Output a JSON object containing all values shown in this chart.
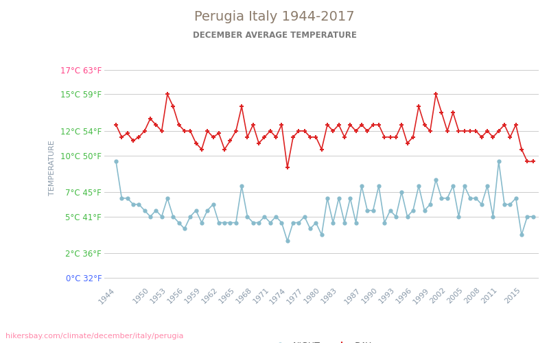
{
  "title": "Perugia Italy 1944-2017",
  "subtitle": "DECEMBER AVERAGE TEMPERATURE",
  "ylabel": "TEMPERATURE",
  "watermark": "hikersbay.com/climate/december/italy/perugia",
  "yticks_c": [
    0,
    2,
    5,
    7,
    10,
    12,
    15,
    17
  ],
  "ytick_labels": [
    "0°C 32°F",
    "2°C 36°F",
    "5°C 41°F",
    "7°C 45°F",
    "10°C 50°F",
    "12°C 54°F",
    "15°C 59°F",
    "17°C 63°F"
  ],
  "ytick_colors": [
    "#4466ff",
    "#44bb44",
    "#44bb44",
    "#44bb44",
    "#44bb44",
    "#44bb44",
    "#44bb44",
    "#ff4488"
  ],
  "xtick_labels": [
    "1944",
    "1950",
    "1953",
    "1956",
    "1959",
    "1962",
    "1965",
    "1968",
    "1971",
    "1974",
    "1977",
    "1980",
    "1983",
    "1987",
    "1990",
    "1993",
    "1996",
    "1999",
    "2002",
    "2005",
    "2008",
    "2011",
    "2015"
  ],
  "title_color": "#8B7B6B",
  "subtitle_color": "#7a7a7a",
  "ylabel_color": "#8a9aaa",
  "grid_color": "#cccccc",
  "night_color": "#88bbcc",
  "day_color": "#dd2222",
  "background_color": "#ffffff",
  "years": [
    1944,
    1945,
    1946,
    1947,
    1948,
    1949,
    1950,
    1951,
    1952,
    1953,
    1954,
    1955,
    1956,
    1957,
    1958,
    1959,
    1960,
    1961,
    1962,
    1963,
    1964,
    1965,
    1966,
    1967,
    1968,
    1969,
    1970,
    1971,
    1972,
    1973,
    1974,
    1975,
    1976,
    1977,
    1978,
    1979,
    1980,
    1981,
    1982,
    1983,
    1984,
    1985,
    1986,
    1987,
    1988,
    1989,
    1990,
    1991,
    1992,
    1993,
    1994,
    1995,
    1996,
    1997,
    1998,
    1999,
    2000,
    2001,
    2002,
    2003,
    2004,
    2005,
    2006,
    2007,
    2008,
    2009,
    2010,
    2011,
    2012,
    2013,
    2014,
    2015,
    2016,
    2017
  ],
  "day": [
    12.5,
    11.5,
    11.8,
    11.2,
    11.5,
    12.0,
    13.0,
    12.5,
    12.0,
    15.0,
    14.0,
    12.5,
    12.0,
    12.0,
    11.0,
    10.5,
    12.0,
    11.5,
    11.8,
    10.5,
    11.2,
    12.0,
    14.0,
    11.5,
    12.5,
    11.0,
    11.5,
    12.0,
    11.5,
    12.5,
    9.0,
    11.5,
    12.0,
    12.0,
    11.5,
    11.5,
    10.5,
    12.5,
    12.0,
    12.5,
    11.5,
    12.5,
    12.0,
    12.5,
    12.0,
    12.5,
    12.5,
    11.5,
    11.5,
    11.5,
    12.5,
    11.0,
    11.5,
    14.0,
    12.5,
    12.0,
    15.0,
    13.5,
    12.0,
    13.5,
    12.0,
    12.0,
    12.0,
    12.0,
    11.5,
    12.0,
    11.5,
    12.0,
    12.5,
    11.5,
    12.5,
    10.5,
    9.5,
    9.5
  ],
  "night": [
    9.5,
    6.5,
    6.5,
    6.0,
    6.0,
    5.5,
    5.0,
    5.5,
    5.0,
    6.5,
    5.0,
    4.5,
    4.0,
    5.0,
    5.5,
    4.5,
    5.5,
    6.0,
    4.5,
    4.5,
    4.5,
    4.5,
    7.5,
    5.0,
    4.5,
    4.5,
    5.0,
    4.5,
    5.0,
    4.5,
    3.0,
    4.5,
    4.5,
    5.0,
    4.0,
    4.5,
    3.5,
    6.5,
    4.5,
    6.5,
    4.5,
    6.5,
    4.5,
    7.5,
    5.5,
    5.5,
    7.5,
    4.5,
    5.5,
    5.0,
    7.0,
    5.0,
    5.5,
    7.5,
    5.5,
    6.0,
    8.0,
    6.5,
    6.5,
    7.5,
    5.0,
    7.5,
    6.5,
    6.5,
    6.0,
    7.5,
    5.0,
    9.5,
    6.0,
    6.0,
    6.5,
    3.5,
    5.0,
    5.0
  ]
}
